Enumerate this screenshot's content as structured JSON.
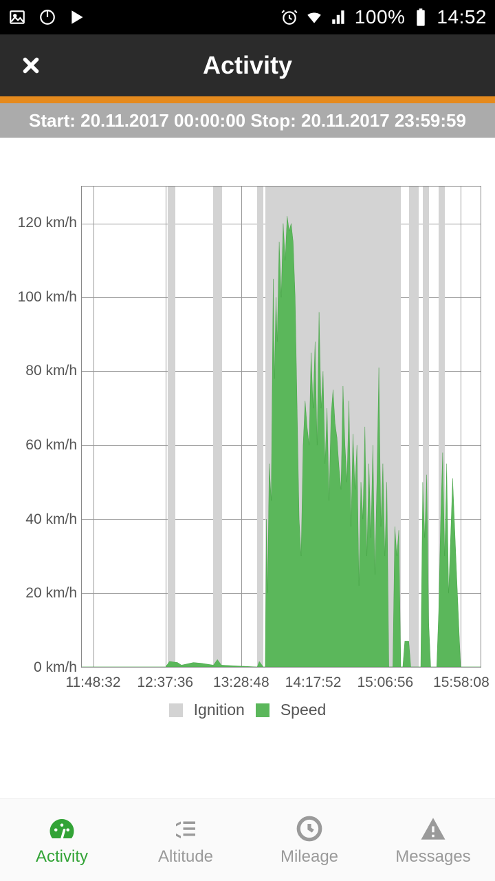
{
  "status": {
    "icons_left": [
      "image-icon",
      "power-icon",
      "play-store-icon"
    ],
    "icons_right": [
      "alarm-icon",
      "wifi-icon",
      "signal-icon"
    ],
    "battery_pct": "100%",
    "time": "14:52"
  },
  "header": {
    "title": "Activity",
    "close_icon": "close-icon"
  },
  "time_range": "Start: 20.11.2017 00:00:00 Stop: 20.11.2017 23:59:59",
  "chart": {
    "type": "area",
    "ylabel_suffix": " km/h",
    "ylim": [
      0,
      130
    ],
    "yticks": [
      0,
      20,
      40,
      60,
      80,
      100,
      120
    ],
    "xtick_labels": [
      "11:48:32",
      "12:37:36",
      "13:28:48",
      "14:17:52",
      "15:06:56",
      "15:58:08"
    ],
    "xtick_positions_pct": [
      3,
      21,
      40,
      58,
      76,
      95
    ],
    "grid_color": "#999999",
    "background_color": "#ffffff",
    "ignition_color": "#d3d3d3",
    "speed_fill": "#5bb75b",
    "speed_stroke": "#3a9a3a",
    "ignition_bands_pct": [
      [
        21.5,
        23.5
      ],
      [
        33,
        35.2
      ],
      [
        44,
        45.5
      ],
      [
        46,
        80
      ],
      [
        82,
        84.5
      ],
      [
        85.5,
        87
      ],
      [
        89.5,
        91
      ]
    ],
    "speed_points": [
      [
        0,
        0
      ],
      [
        21,
        0
      ],
      [
        22,
        1.5
      ],
      [
        24,
        1.2
      ],
      [
        25,
        0.5
      ],
      [
        28,
        1.2
      ],
      [
        30,
        1
      ],
      [
        33,
        0.5
      ],
      [
        34,
        2
      ],
      [
        35,
        0.5
      ],
      [
        44,
        0
      ],
      [
        44.5,
        1.5
      ],
      [
        45.5,
        0
      ],
      [
        46,
        0
      ],
      [
        46.3,
        40
      ],
      [
        46.6,
        20
      ],
      [
        47,
        55
      ],
      [
        47.5,
        45
      ],
      [
        48,
        105
      ],
      [
        48.3,
        78
      ],
      [
        48.7,
        100
      ],
      [
        49,
        88
      ],
      [
        49.5,
        115
      ],
      [
        50,
        100
      ],
      [
        50.5,
        120
      ],
      [
        51,
        110
      ],
      [
        51.5,
        122
      ],
      [
        52,
        118
      ],
      [
        52.5,
        120
      ],
      [
        53,
        115
      ],
      [
        53.5,
        100
      ],
      [
        54,
        70
      ],
      [
        54.5,
        40
      ],
      [
        55,
        30
      ],
      [
        55.5,
        60
      ],
      [
        56,
        72
      ],
      [
        56.5,
        65
      ],
      [
        57,
        60
      ],
      [
        57.5,
        85
      ],
      [
        58,
        70
      ],
      [
        58.5,
        88
      ],
      [
        59,
        60
      ],
      [
        59.5,
        96
      ],
      [
        60,
        70
      ],
      [
        60.5,
        80
      ],
      [
        61,
        55
      ],
      [
        61.5,
        70
      ],
      [
        62,
        45
      ],
      [
        62.5,
        68
      ],
      [
        63,
        75
      ],
      [
        63.5,
        66
      ],
      [
        64,
        62
      ],
      [
        64.5,
        54
      ],
      [
        65,
        48
      ],
      [
        65.5,
        76
      ],
      [
        66,
        60
      ],
      [
        66.5,
        50
      ],
      [
        67,
        72
      ],
      [
        67.5,
        38
      ],
      [
        68,
        63
      ],
      [
        68.5,
        48
      ],
      [
        69,
        60
      ],
      [
        69.5,
        22
      ],
      [
        70,
        50
      ],
      [
        70.5,
        40
      ],
      [
        71,
        65
      ],
      [
        71.5,
        30
      ],
      [
        72,
        55
      ],
      [
        72.5,
        35
      ],
      [
        73,
        60
      ],
      [
        73.5,
        25
      ],
      [
        74,
        50
      ],
      [
        74.5,
        81
      ],
      [
        75,
        38
      ],
      [
        75.5,
        55
      ],
      [
        76,
        30
      ],
      [
        76.5,
        50
      ],
      [
        77,
        0
      ],
      [
        78,
        0
      ],
      [
        78.5,
        38
      ],
      [
        79,
        30
      ],
      [
        79.5,
        37
      ],
      [
        80,
        0
      ],
      [
        80.5,
        0
      ],
      [
        81,
        7
      ],
      [
        82,
        7
      ],
      [
        82.5,
        0
      ],
      [
        83,
        0
      ],
      [
        84,
        0
      ],
      [
        85,
        0
      ],
      [
        85.5,
        50
      ],
      [
        86,
        35
      ],
      [
        86.5,
        52
      ],
      [
        87,
        12
      ],
      [
        87.5,
        0
      ],
      [
        88,
        0
      ],
      [
        89,
        0
      ],
      [
        89.5,
        15
      ],
      [
        90,
        40
      ],
      [
        90.5,
        58
      ],
      [
        91,
        30
      ],
      [
        91.5,
        55
      ],
      [
        92,
        20
      ],
      [
        93,
        51
      ],
      [
        94,
        25
      ],
      [
        95,
        0
      ],
      [
        100,
        0
      ]
    ],
    "legend": [
      {
        "label": "Ignition",
        "color": "#d3d3d3"
      },
      {
        "label": "Speed",
        "color": "#5bb75b"
      }
    ]
  },
  "nav": {
    "items": [
      {
        "key": "activity",
        "label": "Activity",
        "icon": "gauge-icon",
        "active": true
      },
      {
        "key": "altitude",
        "label": "Altitude",
        "icon": "altitude-icon",
        "active": false
      },
      {
        "key": "mileage",
        "label": "Mileage",
        "icon": "clock-icon",
        "active": false
      },
      {
        "key": "messages",
        "label": "Messages",
        "icon": "warning-icon",
        "active": false
      }
    ]
  },
  "colors": {
    "accent": "#e58a1d",
    "header_bg": "#2b2b2b",
    "range_bg": "#ababab",
    "active_green": "#32a336",
    "inactive_gray": "#9a9a9a"
  }
}
